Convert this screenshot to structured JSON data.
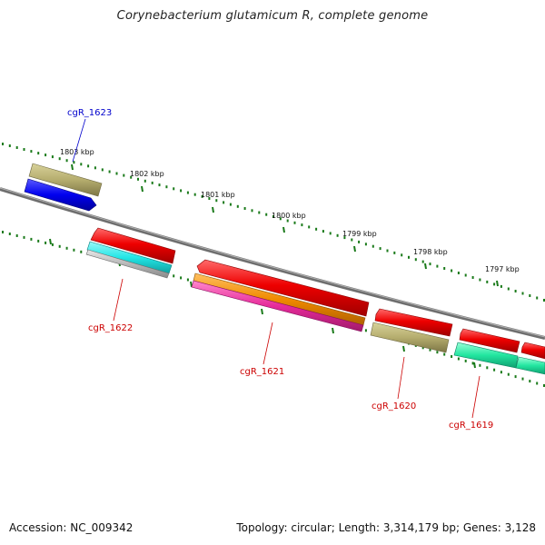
{
  "header": {
    "title": "Corynebacterium glutamicum R, complete genome"
  },
  "footer": {
    "accession": "Accession: NC_009342",
    "topology": "Topology: circular; Length: 3,314,179 bp; Genes: 3,128"
  },
  "colors": {
    "backbone": "#808080",
    "tick": "#1a7a1a",
    "gene_red": "#ee0000",
    "gene_khaki": "#b5ad6e",
    "gene_blue": "#0000ee",
    "gene_cyan": "#22e6e6",
    "gene_silver": "#b8b8b8",
    "gene_orange": "#f08a00",
    "gene_magenta": "#e62a9a",
    "gene_green": "#22e6a0",
    "label_blue": "#0000cc",
    "label_red": "#cc0000"
  },
  "scale": {
    "ticks": [
      {
        "label": "1803 kbp"
      },
      {
        "label": "1802 kbp"
      },
      {
        "label": "1801 kbp"
      },
      {
        "label": "1800 kbp"
      },
      {
        "label": "1799 kbp"
      },
      {
        "label": "1798 kbp"
      },
      {
        "label": "1797 kbp"
      }
    ]
  },
  "genes": [
    {
      "name": "cgR_1623",
      "color": "label_blue"
    },
    {
      "name": "cgR_1622",
      "color": "label_red"
    },
    {
      "name": "cgR_1621",
      "color": "label_red"
    },
    {
      "name": "cgR_1620",
      "color": "label_red"
    },
    {
      "name": "cgR_1619",
      "color": "label_red"
    }
  ]
}
